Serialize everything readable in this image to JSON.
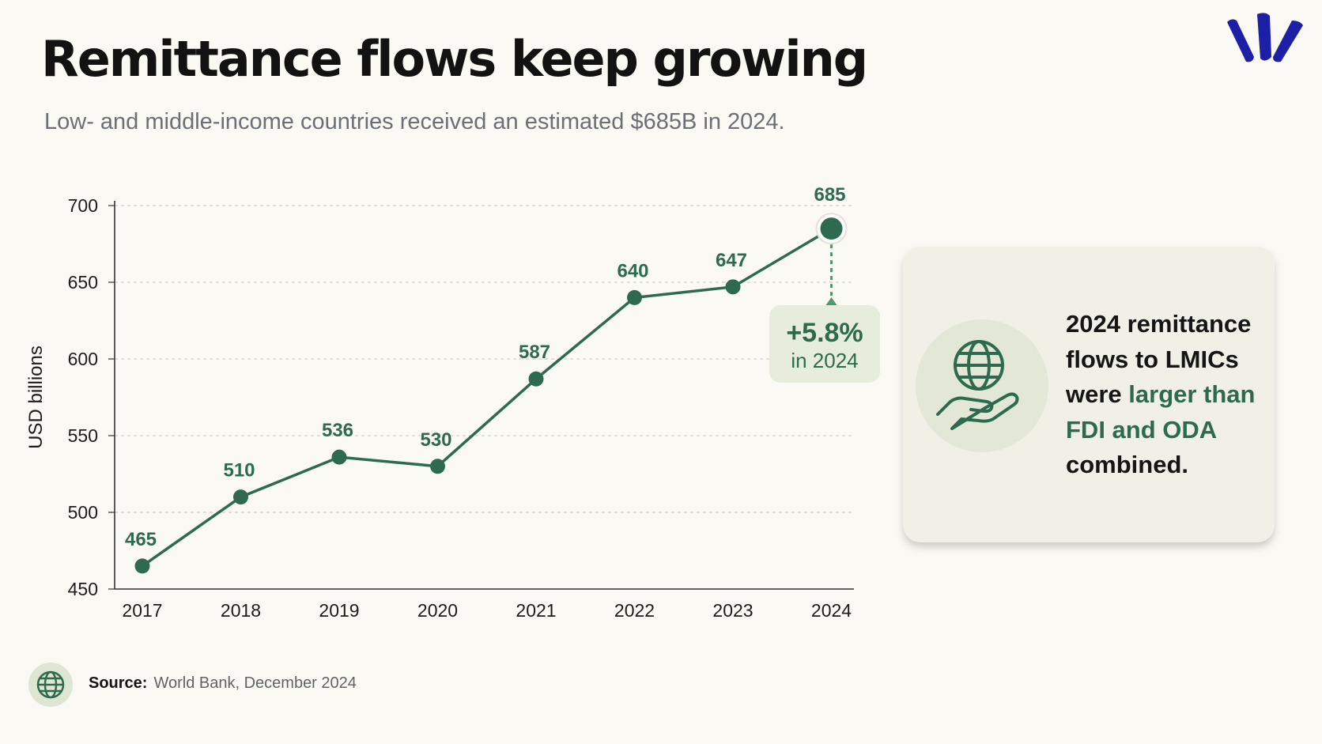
{
  "header": {
    "title": "Remittance flows keep growing",
    "subtitle": "Low- and middle-income countries received an estimated $685B in 2024."
  },
  "logo": {
    "icon": "brand-logo-icon",
    "color": "#1d1fa6"
  },
  "chart_data": {
    "type": "line",
    "title": "",
    "xlabel": "",
    "ylabel": "USD billions",
    "categories": [
      "2017",
      "2018",
      "2019",
      "2020",
      "2021",
      "2022",
      "2023",
      "2024"
    ],
    "values": [
      465,
      510,
      536,
      530,
      587,
      640,
      647,
      685
    ],
    "ylim": [
      450,
      700
    ],
    "yticks": [
      450,
      500,
      550,
      600,
      650,
      700
    ],
    "grid": "horizontal dashed",
    "color": "#2e6b4e",
    "annotation": {
      "value": "+5.8%",
      "sub": "in 2024"
    }
  },
  "card": {
    "icon": "globe-hand-icon",
    "text_line1": "2024 remittance flows to LMICs were ",
    "highlight": "larger than FDI and ODA",
    "text_line2": " combined.",
    "highlight_color": "#2e6b4e"
  },
  "footer": {
    "icon": "globe-icon",
    "source_label": "Source:",
    "source_text": "World Bank, December 2024"
  }
}
